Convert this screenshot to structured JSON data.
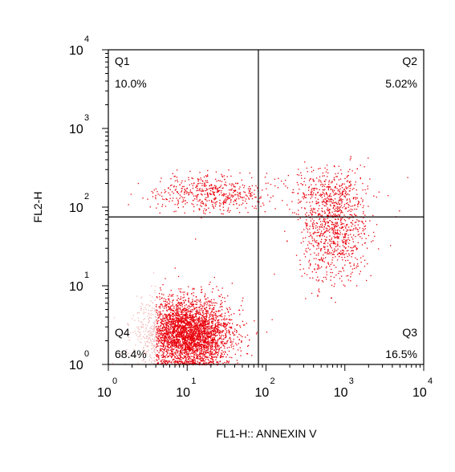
{
  "chart_data": {
    "type": "scatter",
    "title": "",
    "xlabel": "FL1-H:: ANNEXIN V",
    "ylabel": "FL2-H",
    "x_scale": "log",
    "y_scale": "log",
    "xlim": [
      1,
      10000
    ],
    "ylim": [
      1,
      10000
    ],
    "x_ticks": [
      {
        "base": "10",
        "exp": "0"
      },
      {
        "base": "10",
        "exp": "1"
      },
      {
        "base": "10",
        "exp": "2"
      },
      {
        "base": "10",
        "exp": "3"
      },
      {
        "base": "10",
        "exp": "4"
      }
    ],
    "y_ticks": [
      {
        "base": "10",
        "exp": "0"
      },
      {
        "base": "10",
        "exp": "1"
      },
      {
        "base": "10",
        "exp": "2"
      },
      {
        "base": "10",
        "exp": "3"
      },
      {
        "base": "10",
        "exp": "4"
      }
    ],
    "gate": {
      "x": 80,
      "y": 75
    },
    "quadrants": [
      {
        "name": "Q1",
        "value": "10.0%",
        "corner": "top-left"
      },
      {
        "name": "Q2",
        "value": "5.02%",
        "corner": "top-right"
      },
      {
        "name": "Q3",
        "value": "16.5%",
        "corner": "bottom-right"
      },
      {
        "name": "Q4",
        "value": "68.4%",
        "corner": "bottom-left"
      }
    ],
    "clusters": [
      {
        "x_center": 10,
        "y_center": 2.5,
        "x_spread": 0.28,
        "y_spread": 0.22,
        "share": 0.684
      },
      {
        "x_center": 20,
        "y_center": 150,
        "x_spread": 0.35,
        "y_spread": 0.12,
        "share": 0.1
      },
      {
        "x_center": 700,
        "y_center": 50,
        "x_spread": 0.22,
        "y_spread": 0.32,
        "share": 0.165
      },
      {
        "x_center": 700,
        "y_center": 160,
        "x_spread": 0.25,
        "y_spread": 0.14,
        "share": 0.0502
      }
    ],
    "point_color": "#e8000b",
    "faint_color": "#f2b8b8",
    "grid": false
  }
}
